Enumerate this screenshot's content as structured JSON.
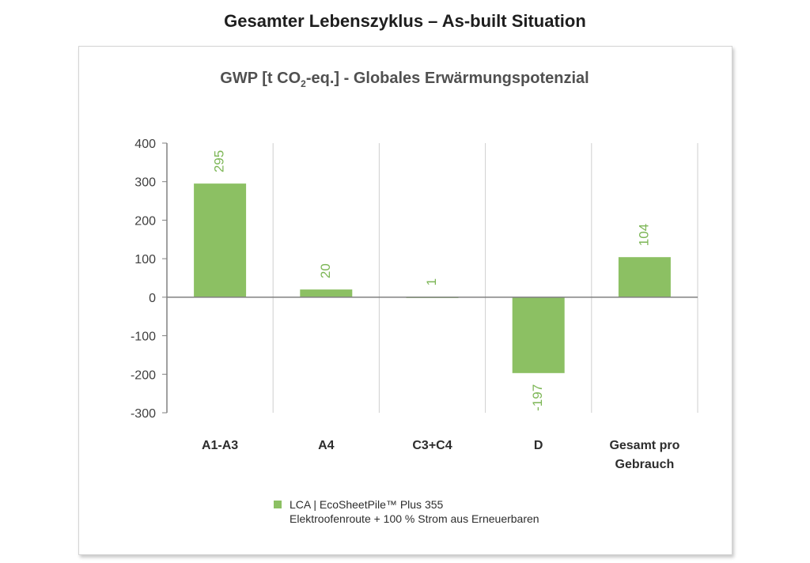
{
  "page": {
    "title": "Gesamter Lebenszyklus – As-built Situation"
  },
  "chart_data": {
    "type": "bar",
    "title_parts": {
      "pre": "GWP [t CO",
      "sub": "2",
      "post": "-eq.] - Globales Erwärmungspotenzial"
    },
    "categories": [
      [
        "A1-A3"
      ],
      [
        "A4"
      ],
      [
        "C3+C4"
      ],
      [
        "D"
      ],
      [
        "Gesamt pro",
        "Gebrauch"
      ]
    ],
    "series": [
      {
        "name": "LCA | EcoSheetPile™ Plus 355",
        "name_line2": "Elektroofenroute + 100 % Strom aus Erneuerbaren",
        "values": [
          295,
          20,
          1,
          -197,
          104
        ],
        "data_labels": [
          "295",
          "20",
          "1",
          "-197",
          "104"
        ]
      }
    ],
    "ylim": [
      -300,
      400
    ],
    "yticks": [
      400,
      300,
      200,
      100,
      0,
      -100,
      -200,
      -300
    ],
    "grid": "vertical category separators",
    "legend_position": "bottom",
    "colors": {
      "bar": "#8cc063",
      "label": "#7cb655",
      "axis": "#808080",
      "grid": "#cfcfcf"
    }
  }
}
